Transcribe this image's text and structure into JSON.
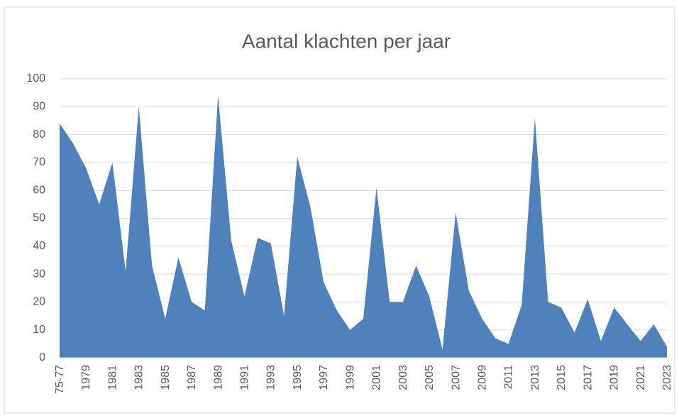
{
  "chart_data": {
    "type": "area",
    "title": "Aantal klachten per jaar",
    "categories": [
      "75-77",
      null,
      "1979",
      null,
      "1981",
      null,
      "1983",
      null,
      "1985",
      null,
      "1987",
      null,
      "1989",
      null,
      "1991",
      null,
      "1993",
      null,
      "1995",
      null,
      "1997",
      null,
      "1999",
      null,
      "2001",
      null,
      "2003",
      null,
      "2005",
      null,
      "2007",
      null,
      "2009",
      null,
      "2011",
      null,
      "2013",
      null,
      "2015",
      null,
      "2017",
      null,
      "2019",
      null,
      "2021",
      null,
      "2023"
    ],
    "values": [
      84,
      77,
      68,
      55,
      70,
      31,
      90,
      33,
      14,
      36,
      20,
      17,
      94,
      42,
      22,
      43,
      41,
      15,
      72,
      54,
      27,
      17,
      10,
      14,
      61,
      20,
      20,
      33,
      22,
      3,
      52,
      24,
      14,
      7,
      5,
      19,
      86,
      20,
      18,
      9,
      21,
      6,
      18,
      12,
      6,
      12,
      4
    ],
    "color": "#4f81bd",
    "ylim": [
      0,
      100
    ],
    "yticks": [
      0,
      10,
      20,
      30,
      40,
      50,
      60,
      70,
      80,
      90,
      100
    ],
    "grid": true
  }
}
